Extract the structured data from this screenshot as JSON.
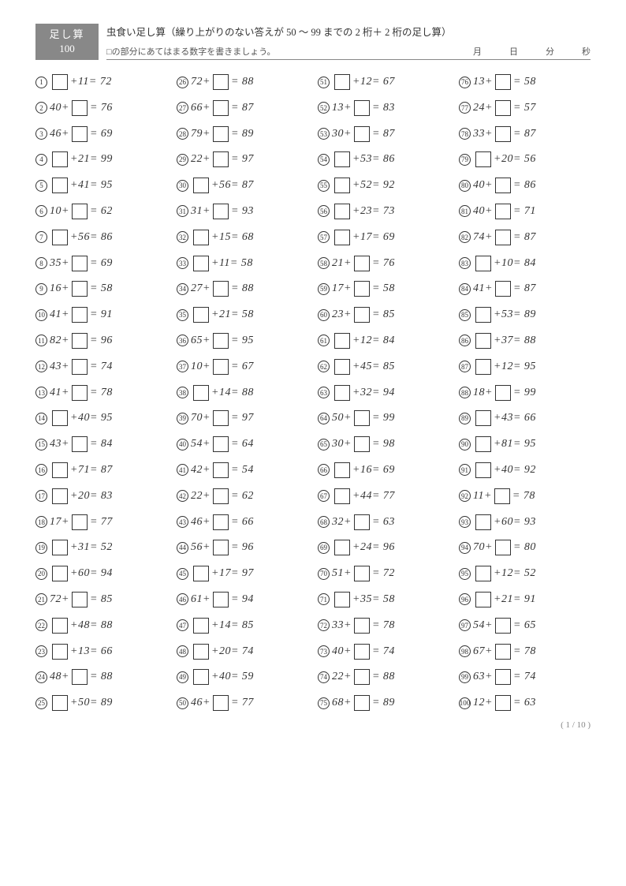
{
  "badge": {
    "line1": "足し算",
    "line2": "100"
  },
  "title": "虫食い足し算（繰り上がりのない答えが 50 ～ 99 までの 2 桁＋ 2 桁の足し算）",
  "subtitle": "□の部分にあてはまる数字を書きましょう。",
  "meta": [
    "月",
    "日",
    "分",
    "秒"
  ],
  "footer": "( 1 / 10 )",
  "problems": [
    {
      "n": 1,
      "a": null,
      "b": "11",
      "r": "72"
    },
    {
      "n": 2,
      "a": "40",
      "b": null,
      "r": "76"
    },
    {
      "n": 3,
      "a": "46",
      "b": null,
      "r": "69"
    },
    {
      "n": 4,
      "a": null,
      "b": "21",
      "r": "99"
    },
    {
      "n": 5,
      "a": null,
      "b": "41",
      "r": "95"
    },
    {
      "n": 6,
      "a": "10",
      "b": null,
      "r": "62"
    },
    {
      "n": 7,
      "a": null,
      "b": "56",
      "r": "86"
    },
    {
      "n": 8,
      "a": "35",
      "b": null,
      "r": "69"
    },
    {
      "n": 9,
      "a": "16",
      "b": null,
      "r": "58"
    },
    {
      "n": 10,
      "a": "41",
      "b": null,
      "r": "91"
    },
    {
      "n": 11,
      "a": "82",
      "b": null,
      "r": "96"
    },
    {
      "n": 12,
      "a": "43",
      "b": null,
      "r": "74"
    },
    {
      "n": 13,
      "a": "41",
      "b": null,
      "r": "78"
    },
    {
      "n": 14,
      "a": null,
      "b": "40",
      "r": "95"
    },
    {
      "n": 15,
      "a": "43",
      "b": null,
      "r": "84"
    },
    {
      "n": 16,
      "a": null,
      "b": "71",
      "r": "87"
    },
    {
      "n": 17,
      "a": null,
      "b": "20",
      "r": "83"
    },
    {
      "n": 18,
      "a": "17",
      "b": null,
      "r": "77"
    },
    {
      "n": 19,
      "a": null,
      "b": "31",
      "r": "52"
    },
    {
      "n": 20,
      "a": null,
      "b": "60",
      "r": "94"
    },
    {
      "n": 21,
      "a": "72",
      "b": null,
      "r": "85"
    },
    {
      "n": 22,
      "a": null,
      "b": "48",
      "r": "88"
    },
    {
      "n": 23,
      "a": null,
      "b": "13",
      "r": "66"
    },
    {
      "n": 24,
      "a": "48",
      "b": null,
      "r": "88"
    },
    {
      "n": 25,
      "a": null,
      "b": "50",
      "r": "89"
    },
    {
      "n": 26,
      "a": "72",
      "b": null,
      "r": "88"
    },
    {
      "n": 27,
      "a": "66",
      "b": null,
      "r": "87"
    },
    {
      "n": 28,
      "a": "79",
      "b": null,
      "r": "89"
    },
    {
      "n": 29,
      "a": "22",
      "b": null,
      "r": "97"
    },
    {
      "n": 30,
      "a": null,
      "b": "56",
      "r": "87"
    },
    {
      "n": 31,
      "a": "31",
      "b": null,
      "r": "93"
    },
    {
      "n": 32,
      "a": null,
      "b": "15",
      "r": "68"
    },
    {
      "n": 33,
      "a": null,
      "b": "11",
      "r": "58"
    },
    {
      "n": 34,
      "a": "27",
      "b": null,
      "r": "88"
    },
    {
      "n": 35,
      "a": null,
      "b": "21",
      "r": "58"
    },
    {
      "n": 36,
      "a": "65",
      "b": null,
      "r": "95"
    },
    {
      "n": 37,
      "a": "10",
      "b": null,
      "r": "67"
    },
    {
      "n": 38,
      "a": null,
      "b": "14",
      "r": "88"
    },
    {
      "n": 39,
      "a": "70",
      "b": null,
      "r": "97"
    },
    {
      "n": 40,
      "a": "54",
      "b": null,
      "r": "64"
    },
    {
      "n": 41,
      "a": "42",
      "b": null,
      "r": "54"
    },
    {
      "n": 42,
      "a": "22",
      "b": null,
      "r": "62"
    },
    {
      "n": 43,
      "a": "46",
      "b": null,
      "r": "66"
    },
    {
      "n": 44,
      "a": "56",
      "b": null,
      "r": "96"
    },
    {
      "n": 45,
      "a": null,
      "b": "17",
      "r": "97"
    },
    {
      "n": 46,
      "a": "61",
      "b": null,
      "r": "94"
    },
    {
      "n": 47,
      "a": null,
      "b": "14",
      "r": "85"
    },
    {
      "n": 48,
      "a": null,
      "b": "20",
      "r": "74"
    },
    {
      "n": 49,
      "a": null,
      "b": "40",
      "r": "59"
    },
    {
      "n": 50,
      "a": "46",
      "b": null,
      "r": "77"
    },
    {
      "n": 51,
      "a": null,
      "b": "12",
      "r": "67"
    },
    {
      "n": 52,
      "a": "13",
      "b": null,
      "r": "83"
    },
    {
      "n": 53,
      "a": "30",
      "b": null,
      "r": "87"
    },
    {
      "n": 54,
      "a": null,
      "b": "53",
      "r": "86"
    },
    {
      "n": 55,
      "a": null,
      "b": "52",
      "r": "92"
    },
    {
      "n": 56,
      "a": null,
      "b": "23",
      "r": "73"
    },
    {
      "n": 57,
      "a": null,
      "b": "17",
      "r": "69"
    },
    {
      "n": 58,
      "a": "21",
      "b": null,
      "r": "76"
    },
    {
      "n": 59,
      "a": "17",
      "b": null,
      "r": "58"
    },
    {
      "n": 60,
      "a": "23",
      "b": null,
      "r": "85"
    },
    {
      "n": 61,
      "a": null,
      "b": "12",
      "r": "84"
    },
    {
      "n": 62,
      "a": null,
      "b": "45",
      "r": "85"
    },
    {
      "n": 63,
      "a": null,
      "b": "32",
      "r": "94"
    },
    {
      "n": 64,
      "a": "50",
      "b": null,
      "r": "99"
    },
    {
      "n": 65,
      "a": "30",
      "b": null,
      "r": "98"
    },
    {
      "n": 66,
      "a": null,
      "b": "16",
      "r": "69"
    },
    {
      "n": 67,
      "a": null,
      "b": "44",
      "r": "77"
    },
    {
      "n": 68,
      "a": "32",
      "b": null,
      "r": "63"
    },
    {
      "n": 69,
      "a": null,
      "b": "24",
      "r": "96"
    },
    {
      "n": 70,
      "a": "51",
      "b": null,
      "r": "72"
    },
    {
      "n": 71,
      "a": null,
      "b": "35",
      "r": "58"
    },
    {
      "n": 72,
      "a": "33",
      "b": null,
      "r": "78"
    },
    {
      "n": 73,
      "a": "40",
      "b": null,
      "r": "74"
    },
    {
      "n": 74,
      "a": "22",
      "b": null,
      "r": "88"
    },
    {
      "n": 75,
      "a": "68",
      "b": null,
      "r": "89"
    },
    {
      "n": 76,
      "a": "13",
      "b": null,
      "r": "58"
    },
    {
      "n": 77,
      "a": "24",
      "b": null,
      "r": "57"
    },
    {
      "n": 78,
      "a": "33",
      "b": null,
      "r": "87"
    },
    {
      "n": 79,
      "a": null,
      "b": "20",
      "r": "56"
    },
    {
      "n": 80,
      "a": "40",
      "b": null,
      "r": "86"
    },
    {
      "n": 81,
      "a": "40",
      "b": null,
      "r": "71"
    },
    {
      "n": 82,
      "a": "74",
      "b": null,
      "r": "87"
    },
    {
      "n": 83,
      "a": null,
      "b": "10",
      "r": "84"
    },
    {
      "n": 84,
      "a": "41",
      "b": null,
      "r": "87"
    },
    {
      "n": 85,
      "a": null,
      "b": "53",
      "r": "89"
    },
    {
      "n": 86,
      "a": null,
      "b": "37",
      "r": "88"
    },
    {
      "n": 87,
      "a": null,
      "b": "12",
      "r": "95"
    },
    {
      "n": 88,
      "a": "18",
      "b": null,
      "r": "99"
    },
    {
      "n": 89,
      "a": null,
      "b": "43",
      "r": "66"
    },
    {
      "n": 90,
      "a": null,
      "b": "81",
      "r": "95"
    },
    {
      "n": 91,
      "a": null,
      "b": "40",
      "r": "92"
    },
    {
      "n": 92,
      "a": "11",
      "b": null,
      "r": "78"
    },
    {
      "n": 93,
      "a": null,
      "b": "60",
      "r": "93"
    },
    {
      "n": 94,
      "a": "70",
      "b": null,
      "r": "80"
    },
    {
      "n": 95,
      "a": null,
      "b": "12",
      "r": "52"
    },
    {
      "n": 96,
      "a": null,
      "b": "21",
      "r": "91"
    },
    {
      "n": 97,
      "a": "54",
      "b": null,
      "r": "65"
    },
    {
      "n": 98,
      "a": "67",
      "b": null,
      "r": "78"
    },
    {
      "n": 99,
      "a": "63",
      "b": null,
      "r": "74"
    },
    {
      "n": 100,
      "a": "12",
      "b": null,
      "r": "63"
    }
  ]
}
